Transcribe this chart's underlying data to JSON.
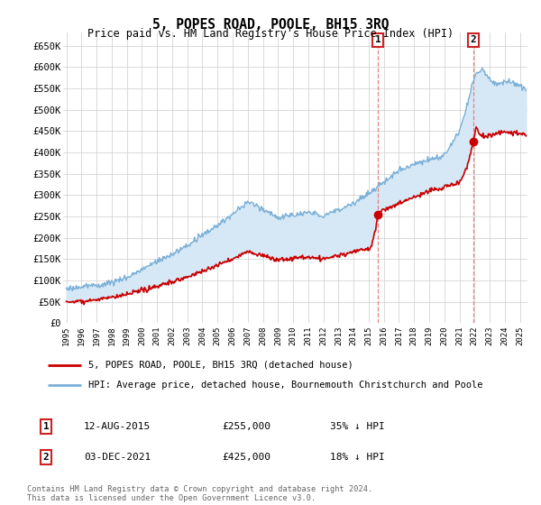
{
  "title": "5, POPES ROAD, POOLE, BH15 3RQ",
  "subtitle": "Price paid vs. HM Land Registry's House Price Index (HPI)",
  "ylabel_ticks": [
    "£0",
    "£50K",
    "£100K",
    "£150K",
    "£200K",
    "£250K",
    "£300K",
    "£350K",
    "£400K",
    "£450K",
    "£500K",
    "£550K",
    "£600K",
    "£650K"
  ],
  "ytick_values": [
    0,
    50000,
    100000,
    150000,
    200000,
    250000,
    300000,
    350000,
    400000,
    450000,
    500000,
    550000,
    600000,
    650000
  ],
  "ylim": [
    0,
    680000
  ],
  "xlim_start": 1994.8,
  "xlim_end": 2025.5,
  "sale1_date": 2015.61,
  "sale1_price": 255000,
  "sale2_date": 2021.92,
  "sale2_price": 425000,
  "hpi_color": "#7ab0d8",
  "hpi_fill_color": "#d6e8f5",
  "price_color": "#cc0000",
  "grid_color": "#cccccc",
  "bg_color": "#ffffff",
  "legend_label_price": "5, POPES ROAD, POOLE, BH15 3RQ (detached house)",
  "legend_label_hpi": "HPI: Average price, detached house, Bournemouth Christchurch and Poole",
  "annotation1": "12-AUG-2015",
  "annotation1_price": "£255,000",
  "annotation1_hpi": "35% ↓ HPI",
  "annotation2": "03-DEC-2021",
  "annotation2_price": "£425,000",
  "annotation2_hpi": "18% ↓ HPI",
  "footer": "Contains HM Land Registry data © Crown copyright and database right 2024.\nThis data is licensed under the Open Government Licence v3.0."
}
